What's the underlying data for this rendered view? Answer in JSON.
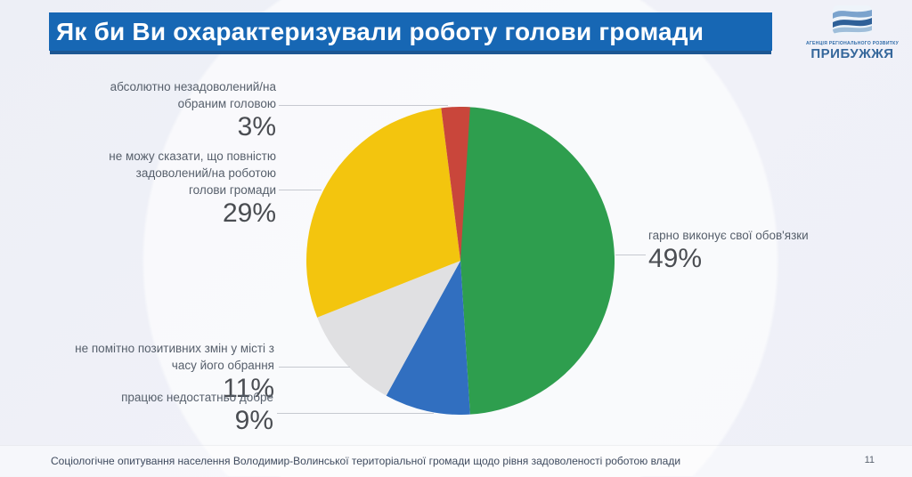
{
  "slide": {
    "title": "Як би Ви охарактеризували роботу голови громади",
    "footer": "Соціологічне опитування населення Володимир-Волинської територіальної громади щодо рівня задоволеності роботою влади",
    "page_number": "11"
  },
  "logo": {
    "org_line": "АГЕНЦІЯ РЕГІОНАЛЬНОГО РОЗВИТКУ",
    "org_name": "ПРИБУЖЖЯ"
  },
  "theme": {
    "banner_blue": "#1767b4",
    "logo_blue": "#35679b",
    "label_grey": "#565f6b",
    "value_grey": "#4a4d52",
    "leader_line": "#c6c9d0"
  },
  "chart_data": {
    "type": "pie",
    "title": "Як би Ви охарактеризували роботу голови громади",
    "start_angle_deg": 0,
    "direction": "clockwise",
    "legend_position": "callout-labels",
    "slices": [
      {
        "id": "performs-well",
        "label": "гарно виконує свої обов'язки",
        "value": 49,
        "color": "#2e9e4e"
      },
      {
        "id": "works-not-well-enough",
        "label": "працює недостатньо добре",
        "value": 9,
        "color": "#316fc0"
      },
      {
        "id": "no-positive-changes",
        "label": "не помітно позитивних змін у місті з часу його обрання",
        "value": 11,
        "color": "#e0e0e2"
      },
      {
        "id": "not-fully-satisfied",
        "label": "не можу сказати, що повністю задоволений/на роботою голови громади",
        "value": 29,
        "color": "#f3c50e"
      },
      {
        "id": "absolutely-dissatisfied",
        "label": "абсолютно незадоволений/на обраним головою",
        "value": 3,
        "color": "#c9463b"
      }
    ]
  },
  "callouts": [
    {
      "id": "absolutely-dissatisfied",
      "lines": [
        "абсолютно незадоволений/на",
        "обраним головою"
      ],
      "value": "3%"
    },
    {
      "id": "not-fully-satisfied",
      "lines": [
        "не можу сказати, що повністю",
        "задоволений/на роботою",
        "голови громади"
      ],
      "value": "29%"
    },
    {
      "id": "performs-well",
      "lines": [
        "гарно виконує свої обов'язки"
      ],
      "value": "49%"
    },
    {
      "id": "no-positive-changes",
      "lines": [
        "не помітно позитивних змін у місті з",
        "часу його обрання"
      ],
      "value": "11%"
    },
    {
      "id": "works-not-well-enough",
      "lines": [
        "працює недостатньо добре"
      ],
      "value": "9%"
    }
  ]
}
